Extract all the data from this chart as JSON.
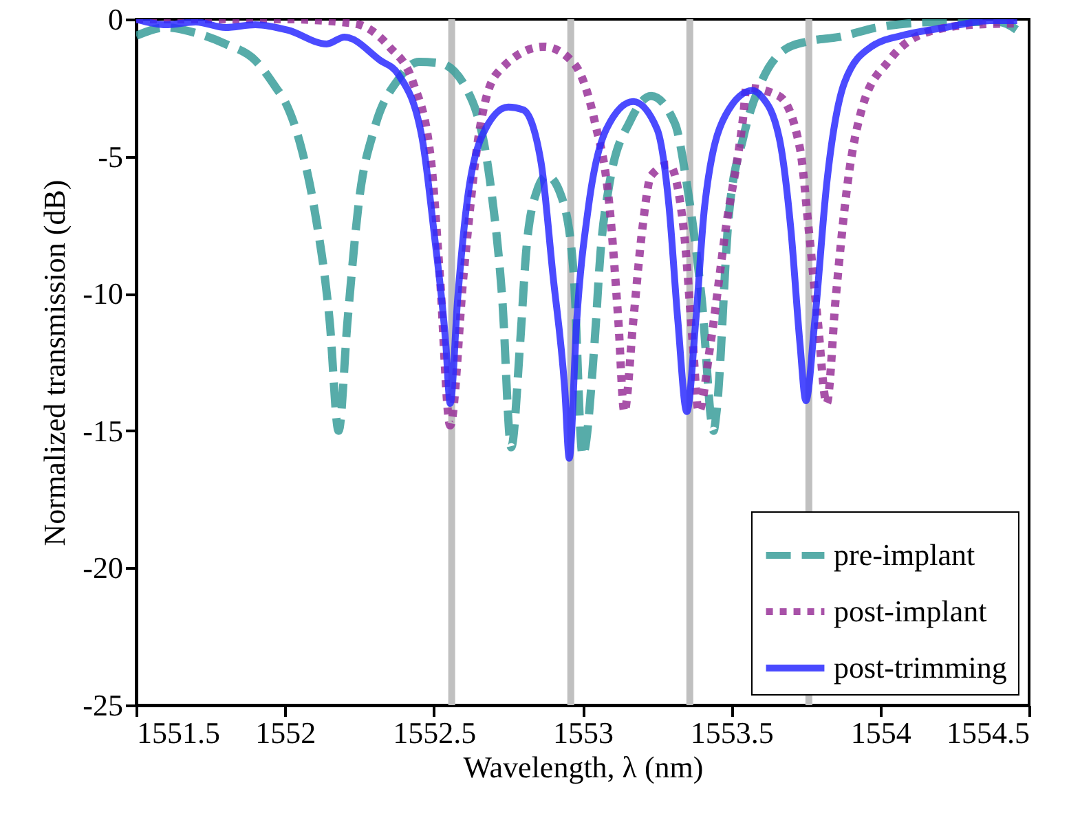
{
  "chart_data": {
    "type": "line",
    "xlabel": "Wavelength, λ (nm)",
    "ylabel": "Normalized transmission (dB)",
    "xlim": [
      1551.5,
      1554.5
    ],
    "xticks": [
      1551.5,
      1552,
      1552.5,
      1553,
      1553.5,
      1554,
      1554.5
    ],
    "ylim": [
      -25,
      0
    ],
    "yticks": [
      -25,
      -20,
      -15,
      -10,
      -5,
      0
    ],
    "grid": false,
    "legend": "bottom right",
    "ref_lines": [
      {
        "axis": "x",
        "value": 1552.56,
        "color": "#c0c0c0"
      },
      {
        "axis": "x",
        "value": 1552.96,
        "color": "#c0c0c0"
      },
      {
        "axis": "x",
        "value": 1553.36,
        "color": "#c0c0c0"
      },
      {
        "axis": "x",
        "value": 1553.76,
        "color": "#c0c0c0"
      }
    ],
    "series": [
      {
        "name": "pre-implant",
        "color": "#3a9e9a",
        "line_style": "dashed",
        "x": [
          1551.5,
          1551.6,
          1551.7,
          1551.8,
          1551.9,
          1551.97,
          1552.0,
          1552.05,
          1552.1,
          1552.15,
          1552.18,
          1552.21,
          1552.25,
          1552.3,
          1552.38,
          1552.45,
          1552.52,
          1552.63,
          1552.69,
          1552.73,
          1552.76,
          1552.79,
          1552.81,
          1552.845,
          1552.88,
          1552.93,
          1552.97,
          1553.0,
          1553.04,
          1553.06,
          1553.09,
          1553.16,
          1553.23,
          1553.31,
          1553.35,
          1553.4,
          1553.44,
          1553.45,
          1553.49,
          1553.54,
          1553.6,
          1553.68,
          1553.76,
          1553.86,
          1553.99,
          1554.2,
          1554.4,
          1554.46
        ],
        "values": [
          -0.6,
          -0.3,
          -0.5,
          -0.9,
          -1.5,
          -2.5,
          -3,
          -4.5,
          -7,
          -11,
          -15,
          -11,
          -6.5,
          -4,
          -2.2,
          -1.55,
          -1.6,
          -3,
          -6,
          -10.2,
          -15.6,
          -11.8,
          -8.5,
          -6.3,
          -5.7,
          -6.5,
          -9.3,
          -15.9,
          -11.8,
          -8.5,
          -6,
          -3.7,
          -2.8,
          -3.8,
          -6,
          -10.2,
          -15,
          -14.3,
          -7.3,
          -4.3,
          -2.3,
          -1.1,
          -0.8,
          -0.65,
          -0.3,
          -0.1,
          -0.1,
          -0.4
        ]
      },
      {
        "name": "post-implant",
        "color": "#993399",
        "line_style": "dotted",
        "x": [
          1551.5,
          1551.8,
          1552.0,
          1552.23,
          1552.35,
          1552.43,
          1552.49,
          1552.52,
          1552.555,
          1552.6,
          1552.65,
          1552.71,
          1552.87,
          1552.97,
          1553.04,
          1553.09,
          1553.12,
          1553.14,
          1553.17,
          1553.2,
          1553.23,
          1553.29,
          1553.34,
          1553.37,
          1553.39,
          1553.43,
          1553.48,
          1553.54,
          1553.55,
          1553.66,
          1553.73,
          1553.76,
          1553.79,
          1553.82,
          1553.85,
          1553.89,
          1553.94,
          1554.03,
          1554.15,
          1554.31,
          1554.46
        ],
        "values": [
          0,
          0,
          0,
          -0.15,
          -1,
          -2.3,
          -5.1,
          -9.3,
          -14.8,
          -9.3,
          -4.3,
          -2,
          -1,
          -1.6,
          -3.7,
          -6.8,
          -11,
          -14.3,
          -11,
          -7.7,
          -5.7,
          -5.3,
          -7.7,
          -11.8,
          -14.3,
          -11.8,
          -7.7,
          -3.5,
          -2.5,
          -2.8,
          -4.7,
          -7.7,
          -11,
          -14,
          -10.2,
          -6,
          -3.2,
          -1.5,
          -0.5,
          -0.2,
          -0.15
        ]
      },
      {
        "name": "post-trimming",
        "color": "#2b2bff",
        "line_style": "solid",
        "x": [
          1551.5,
          1551.6,
          1551.7,
          1551.8,
          1551.9,
          1552.01,
          1552.14,
          1552.2,
          1552.32,
          1552.38,
          1552.46,
          1552.5,
          1552.54,
          1552.555,
          1552.58,
          1552.61,
          1552.66,
          1552.75,
          1552.8,
          1552.86,
          1552.9,
          1552.94,
          1552.955,
          1552.98,
          1553.02,
          1553.08,
          1553.17,
          1553.25,
          1553.29,
          1553.32,
          1553.35,
          1553.38,
          1553.41,
          1553.48,
          1553.57,
          1553.6,
          1553.66,
          1553.7,
          1553.73,
          1553.75,
          1553.78,
          1553.82,
          1553.88,
          1553.97,
          1554.09,
          1554.22,
          1554.37,
          1554.46
        ],
        "values": [
          0,
          -0.2,
          -0.1,
          -0.3,
          -0.2,
          -0.4,
          -0.9,
          -0.65,
          -1.5,
          -2,
          -4.3,
          -7.7,
          -11.8,
          -14,
          -10.2,
          -6.8,
          -4.3,
          -3.2,
          -3.3,
          -5.2,
          -9.3,
          -13.5,
          -16,
          -11,
          -6.8,
          -4,
          -3,
          -4,
          -6.8,
          -11,
          -14.3,
          -11,
          -6.8,
          -3.5,
          -2.6,
          -2.8,
          -4.3,
          -7.7,
          -11.8,
          -13.9,
          -11,
          -6,
          -2.3,
          -1,
          -0.55,
          -0.3,
          -0.05,
          -0.05
        ]
      }
    ]
  }
}
